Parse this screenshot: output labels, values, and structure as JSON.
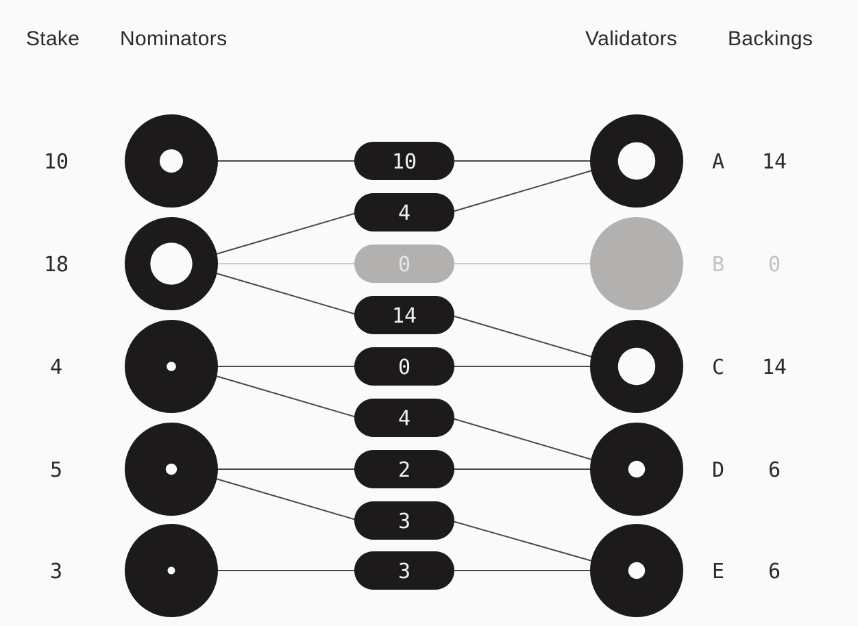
{
  "headers": {
    "stake": "Stake",
    "nominators": "Nominators",
    "validators": "Validators",
    "backings": "Backings"
  },
  "colors": {
    "active": "#1c1a1b",
    "inactive": "#b3b1b0",
    "background": "#fafafa",
    "line": "#4a4a4a",
    "line_inactive": "#cfcdcc",
    "pill_text": "#f2f2f2",
    "pill_text_inactive": "#e6e6e6",
    "label": "#2a2a2a",
    "label_inactive": "#c4c2c1"
  },
  "nominators": [
    {
      "stake": "10",
      "hole": 0.25
    },
    {
      "stake": "18",
      "hole": 0.45
    },
    {
      "stake": "4",
      "hole": 0.1
    },
    {
      "stake": "5",
      "hole": 0.12
    },
    {
      "stake": "3",
      "hole": 0.08
    }
  ],
  "validators": [
    {
      "name": "A",
      "backing": "14",
      "hole": 0.4,
      "active": true
    },
    {
      "name": "B",
      "backing": "0",
      "hole": 0,
      "active": false
    },
    {
      "name": "C",
      "backing": "14",
      "hole": 0.4,
      "active": true
    },
    {
      "name": "D",
      "backing": "6",
      "hole": 0.18,
      "active": true
    },
    {
      "name": "E",
      "backing": "6",
      "hole": 0.18,
      "active": true
    }
  ],
  "edges": [
    {
      "from": 0,
      "to": 0,
      "amount": "10",
      "active": true
    },
    {
      "from": 1,
      "to": 0,
      "amount": "4",
      "active": true
    },
    {
      "from": 1,
      "to": 1,
      "amount": "0",
      "active": false
    },
    {
      "from": 1,
      "to": 2,
      "amount": "14",
      "active": true
    },
    {
      "from": 2,
      "to": 2,
      "amount": "0",
      "active": true
    },
    {
      "from": 2,
      "to": 3,
      "amount": "4",
      "active": true
    },
    {
      "from": 3,
      "to": 3,
      "amount": "2",
      "active": true
    },
    {
      "from": 3,
      "to": 4,
      "amount": "3",
      "active": true
    },
    {
      "from": 4,
      "to": 4,
      "amount": "3",
      "active": true
    }
  ]
}
